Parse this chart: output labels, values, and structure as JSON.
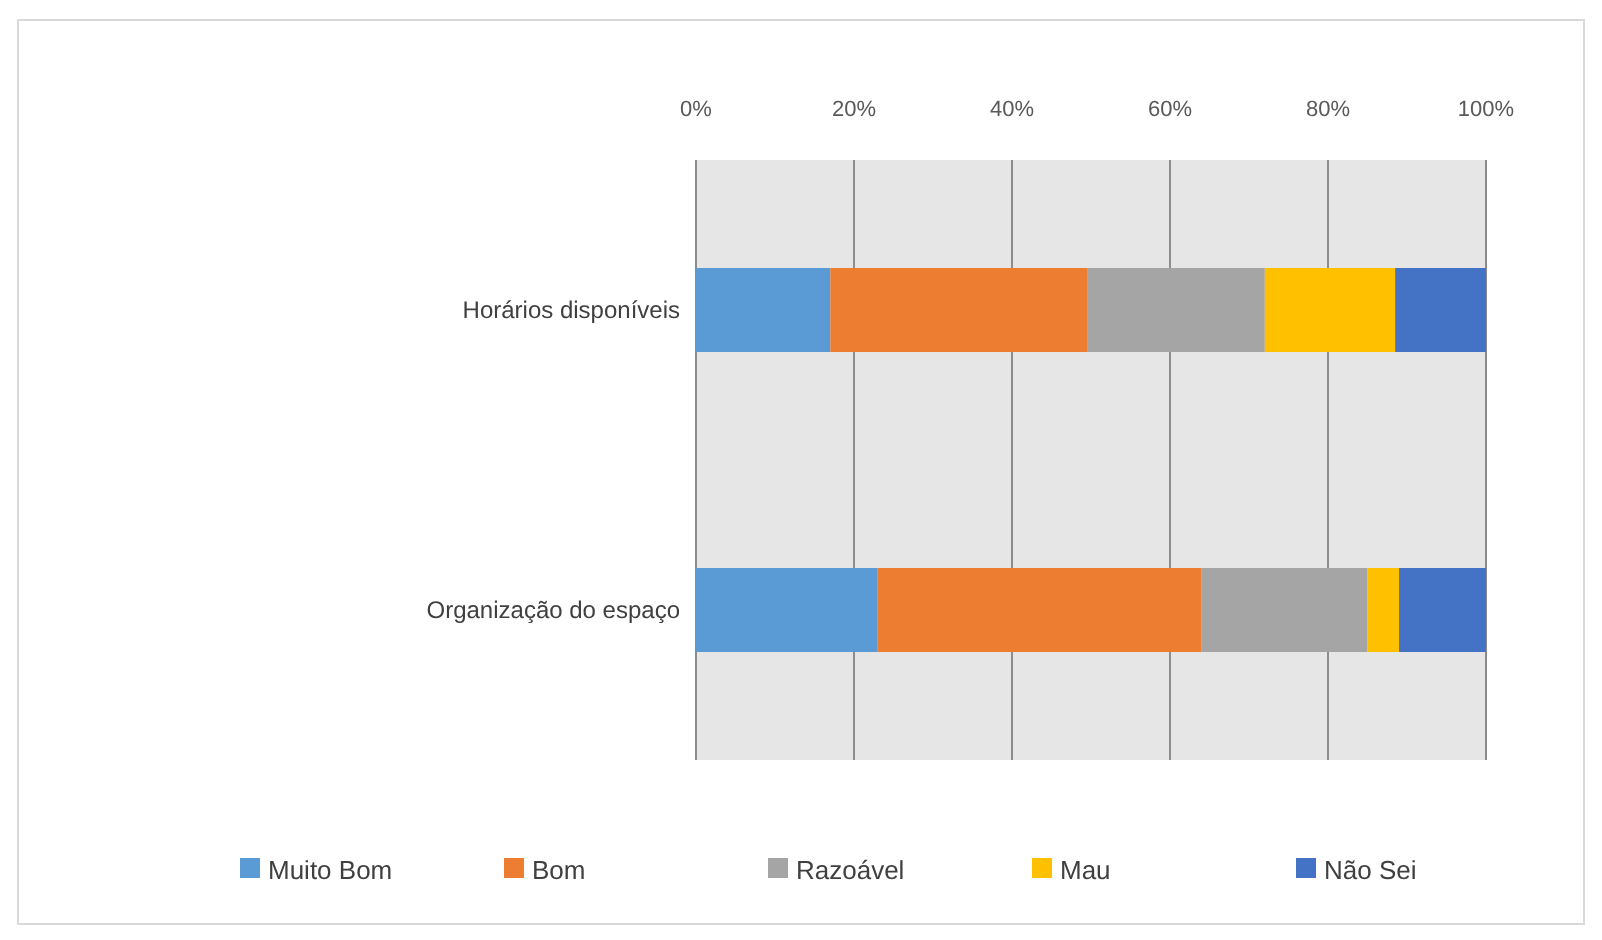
{
  "chart_data": {
    "type": "bar",
    "orientation": "horizontal",
    "stacked": true,
    "categories": [
      "Horários disponíveis",
      "Organização do espaço"
    ],
    "series": [
      {
        "name": "Muito Bom",
        "color": "#5b9bd5",
        "values": [
          17,
          23
        ]
      },
      {
        "name": "Bom",
        "color": "#ed7d31",
        "values": [
          32.5,
          41
        ]
      },
      {
        "name": "Razoável",
        "color": "#a5a5a5",
        "values": [
          22.5,
          21
        ]
      },
      {
        "name": "Mau",
        "color": "#ffc000",
        "values": [
          16.5,
          4
        ]
      },
      {
        "name": "Não Sei",
        "color": "#4472c4",
        "values": [
          11.5,
          11
        ]
      }
    ],
    "xlim": [
      0,
      100
    ],
    "xticks": [
      {
        "value": 0,
        "label": "0%"
      },
      {
        "value": 20,
        "label": "20%"
      },
      {
        "value": 40,
        "label": "40%"
      },
      {
        "value": 60,
        "label": "60%"
      },
      {
        "value": 80,
        "label": "80%"
      },
      {
        "value": 100,
        "label": "100%"
      }
    ],
    "grid": "x",
    "legend": "bottom"
  }
}
